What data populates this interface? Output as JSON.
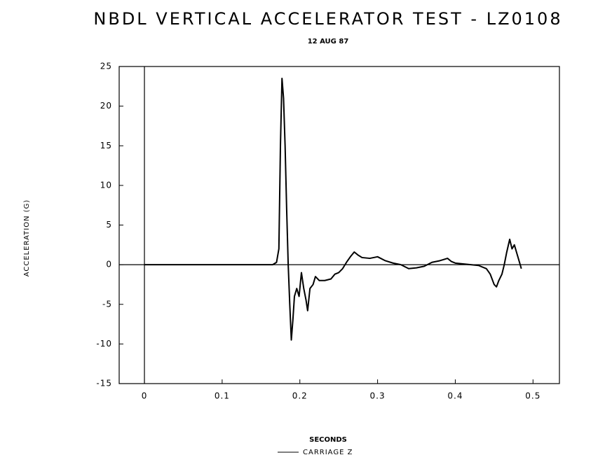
{
  "chart_data": {
    "type": "line",
    "title": "NBDL VERTICAL ACCELERATOR TEST - LZ0108",
    "subtitle": "12 AUG 87",
    "x_label": "SECONDS",
    "y_label": "ACCELERATION (G)",
    "xlim": [
      -0.0325,
      0.534
    ],
    "ylim": [
      -15,
      25
    ],
    "xticks": [
      0,
      0.1,
      0.2,
      0.3,
      0.4,
      0.5
    ],
    "yticks": [
      -15,
      -10,
      -5,
      0,
      5,
      10,
      15,
      20,
      25
    ],
    "legend": "bottom",
    "series": [
      {
        "name": "CARRIAGE Z",
        "color": "#000000",
        "x": [
          0,
          0.165,
          0.17,
          0.173,
          0.175,
          0.177,
          0.179,
          0.181,
          0.183,
          0.185,
          0.187,
          0.189,
          0.191,
          0.193,
          0.196,
          0.199,
          0.202,
          0.205,
          0.208,
          0.21,
          0.213,
          0.217,
          0.22,
          0.225,
          0.232,
          0.24,
          0.245,
          0.25,
          0.255,
          0.26,
          0.265,
          0.27,
          0.275,
          0.28,
          0.29,
          0.3,
          0.31,
          0.32,
          0.33,
          0.34,
          0.35,
          0.36,
          0.37,
          0.38,
          0.39,
          0.395,
          0.4,
          0.41,
          0.42,
          0.43,
          0.44,
          0.445,
          0.45,
          0.453,
          0.456,
          0.46,
          0.463,
          0.466,
          0.47,
          0.473,
          0.476,
          0.479,
          0.482,
          0.485
        ],
        "values": [
          0,
          0,
          0.3,
          2,
          15,
          23.5,
          21,
          15,
          7,
          0,
          -5,
          -9.5,
          -7,
          -4,
          -3,
          -4,
          -1,
          -3,
          -4.5,
          -5.8,
          -3,
          -2.5,
          -1.5,
          -2,
          -2,
          -1.8,
          -1.2,
          -1,
          -0.5,
          0.3,
          1,
          1.6,
          1.2,
          0.9,
          0.8,
          1,
          0.5,
          0.2,
          0,
          -0.5,
          -0.4,
          -0.2,
          0.3,
          0.5,
          0.8,
          0.4,
          0.2,
          0.1,
          0,
          -0.1,
          -0.5,
          -1.2,
          -2.5,
          -2.8,
          -2,
          -1.2,
          0,
          1.5,
          3.2,
          2,
          2.5,
          1.5,
          0.5,
          -0.5
        ]
      }
    ]
  }
}
